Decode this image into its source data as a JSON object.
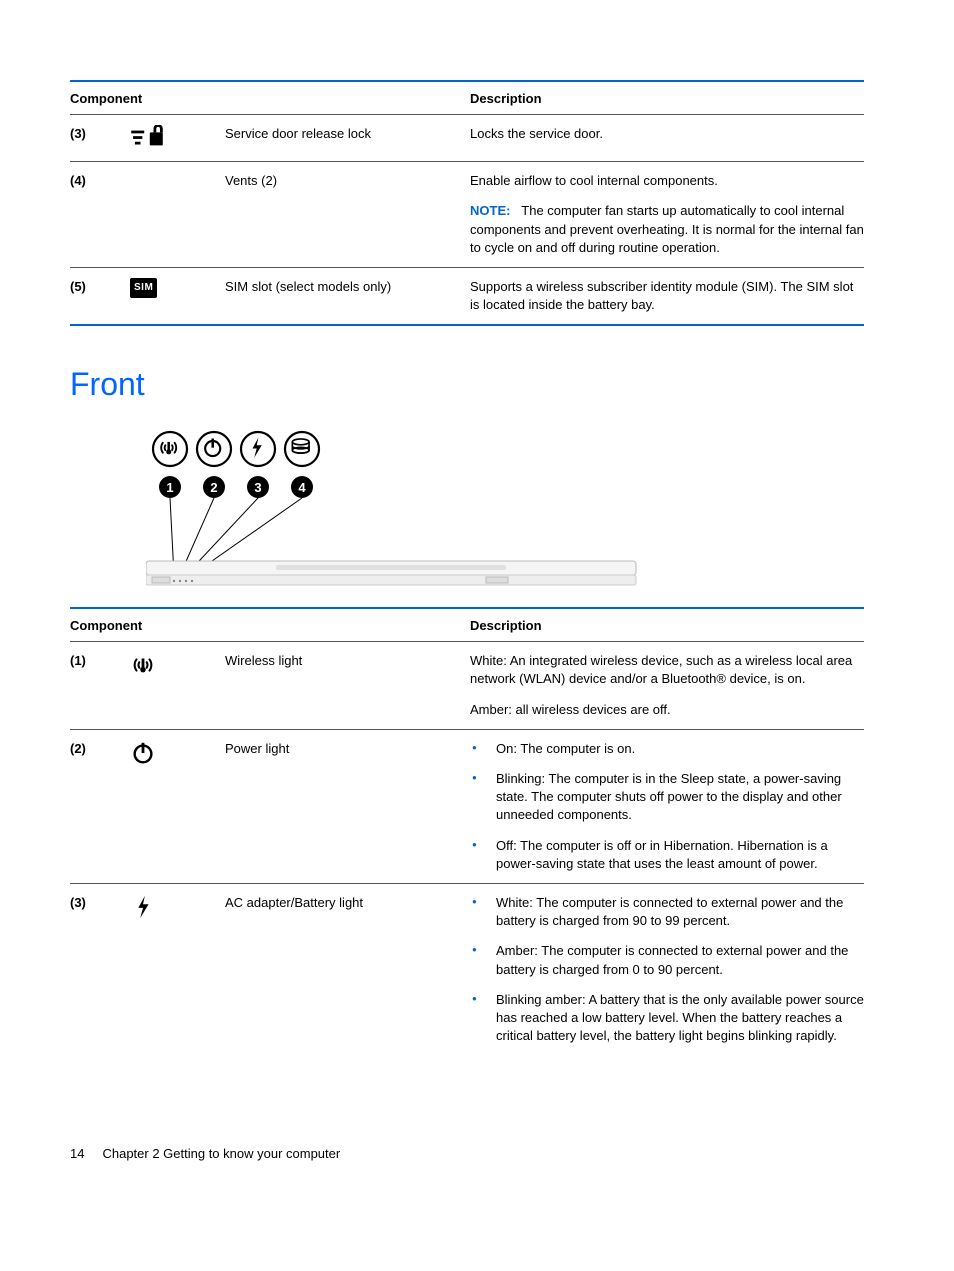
{
  "colors": {
    "accent": "#0066cc",
    "heading": "#0066ff",
    "text": "#000000",
    "bg": "#ffffff"
  },
  "table1": {
    "headers": {
      "component": "Component",
      "description": "Description"
    },
    "rows": [
      {
        "num": "(3)",
        "icon": "lock",
        "name": "Service door release lock",
        "desc": [
          {
            "type": "text",
            "text": "Locks the service door."
          }
        ]
      },
      {
        "num": "(4)",
        "icon": "",
        "name": "Vents (2)",
        "desc": [
          {
            "type": "text",
            "text": "Enable airflow to cool internal components."
          },
          {
            "type": "note",
            "label": "NOTE:",
            "text": "The computer fan starts up automatically to cool internal components and prevent overheating. It is normal for the internal fan to cycle on and off during routine operation."
          }
        ]
      },
      {
        "num": "(5)",
        "icon": "sim",
        "name": "SIM slot (select models only)",
        "desc": [
          {
            "type": "text",
            "text": "Supports a wireless subscriber identity module (SIM). The SIM slot is located inside the battery bay."
          }
        ]
      }
    ]
  },
  "section_heading": "Front",
  "diagram": {
    "icons": [
      "wireless",
      "power",
      "bolt",
      "drive"
    ],
    "labels": [
      "1",
      "2",
      "3",
      "4"
    ]
  },
  "table2": {
    "headers": {
      "component": "Component",
      "description": "Description"
    },
    "rows": [
      {
        "num": "(1)",
        "icon": "wireless",
        "name": "Wireless light",
        "desc": [
          {
            "type": "text",
            "text": "White: An integrated wireless device, such as a wireless local area network (WLAN) device and/or a Bluetooth® device, is on."
          },
          {
            "type": "text",
            "text": "Amber: all wireless devices are off."
          }
        ]
      },
      {
        "num": "(2)",
        "icon": "power",
        "name": "Power light",
        "desc": [
          {
            "type": "bullets",
            "items": [
              "On: The computer is on.",
              "Blinking: The computer is in the Sleep state, a power-saving state. The computer shuts off power to the display and other unneeded components.",
              "Off: The computer is off or in Hibernation. Hibernation is a power-saving state that uses the least amount of power."
            ]
          }
        ]
      },
      {
        "num": "(3)",
        "icon": "bolt",
        "name": "AC adapter/Battery light",
        "desc": [
          {
            "type": "bullets",
            "items": [
              "White: The computer is connected to external power and the battery is charged from 90 to 99 percent.",
              "Amber: The computer is connected to external power and the battery is charged from 0 to 90 percent.",
              "Blinking amber: A battery that is the only available power source has reached a low battery level. When the battery reaches a critical battery level, the battery light begins blinking rapidly."
            ]
          }
        ]
      }
    ]
  },
  "footer": {
    "page": "14",
    "chapter": "Chapter 2   Getting to know your computer"
  }
}
